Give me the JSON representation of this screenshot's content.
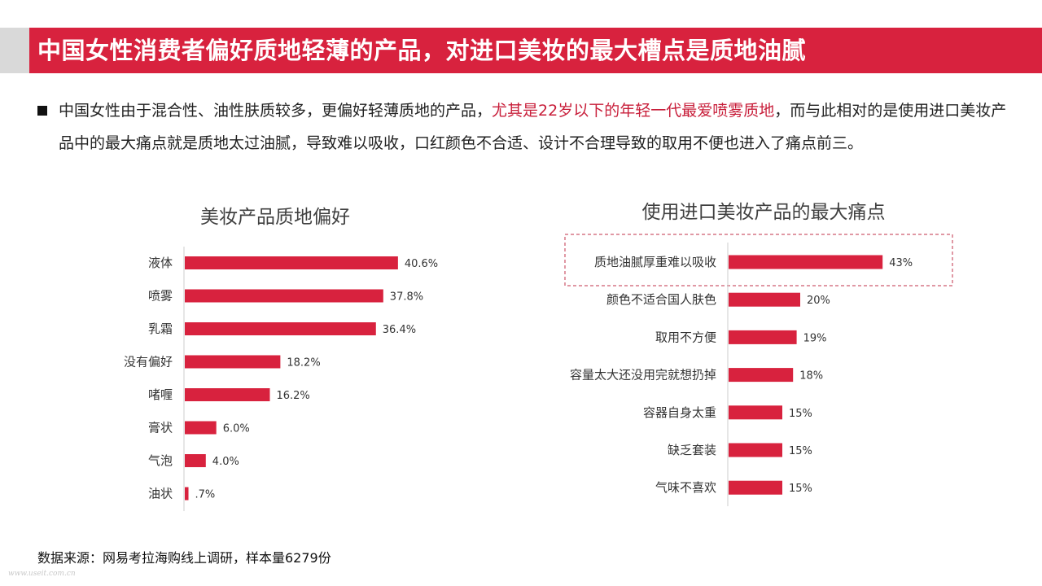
{
  "header": {
    "title": "中国女性消费者偏好质地轻薄的产品，对进口美妆的最大槽点是质地油腻"
  },
  "intro": {
    "part1": "中国女性由于混合性、油性肤质较多，更偏好轻薄质地的产品，",
    "highlight": "尤其是22岁以下的年轻一代最爱喷雾质地",
    "part2": "，而与此相对的是使用进口美妆产品中的最大痛点就是质地太过油腻，导致难以吸收，口红颜色不合适、设计不合理导致的取用不便也进入了痛点前三。"
  },
  "source": "数据来源：网易考拉海购线上调研，样本量6279份",
  "watermark": "www.useit.com.cn",
  "colors": {
    "bar": "#d8223e",
    "accent": "#d8223e"
  },
  "chart_data": [
    {
      "type": "bar",
      "orientation": "horizontal",
      "title": "美妆产品质地偏好",
      "categories": [
        "液体",
        "喷雾",
        "乳霜",
        "没有偏好",
        "啫喱",
        "膏状",
        "气泡",
        "油状"
      ],
      "values": [
        40.6,
        37.8,
        36.4,
        18.2,
        16.2,
        6.0,
        4.0,
        0.7
      ],
      "value_labels": [
        "40.6%",
        "37.8%",
        "36.4%",
        "18.2%",
        "16.2%",
        "6.0%",
        "4.0%",
        ".7%"
      ],
      "unit": "%",
      "grid": false,
      "legend": "none"
    },
    {
      "type": "bar",
      "orientation": "horizontal",
      "title": "使用进口美妆产品的最大痛点",
      "categories": [
        "质地油腻厚重难以吸收",
        "颜色不适合国人肤色",
        "取用不方便",
        "容量太大还没用完就想扔掉",
        "容器自身太重",
        "缺乏套装",
        "气味不喜欢"
      ],
      "values": [
        43,
        20,
        19,
        18,
        15,
        15,
        15
      ],
      "value_labels": [
        "43%",
        "20%",
        "19%",
        "18%",
        "15%",
        "15%",
        "15%"
      ],
      "unit": "%",
      "highlighted_category": "质地油腻厚重难以吸收",
      "grid": false,
      "legend": "none"
    }
  ]
}
